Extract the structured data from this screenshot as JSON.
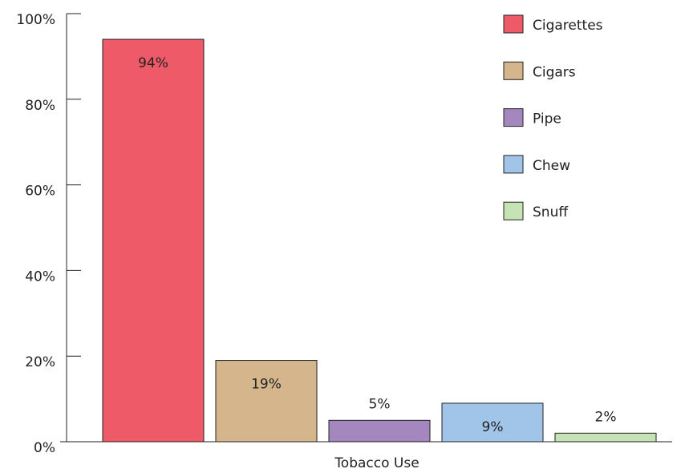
{
  "chart_data": {
    "type": "bar",
    "x_label": "Tobacco Use",
    "series": [
      {
        "name": "Cigarettes",
        "color": "#ef5a68",
        "values": [
          94
        ],
        "value_labels": [
          "94%"
        ]
      },
      {
        "name": "Cigars",
        "color": "#d5b68c",
        "values": [
          19
        ],
        "value_labels": [
          "19%"
        ]
      },
      {
        "name": "Pipe",
        "color": "#a487be",
        "values": [
          5
        ],
        "value_labels": [
          "5%"
        ]
      },
      {
        "name": "Chew",
        "color": "#a1c4e9",
        "values": [
          9
        ],
        "value_labels": [
          "9%"
        ]
      },
      {
        "name": "Snuff",
        "color": "#c6e3b6",
        "values": [
          2
        ],
        "value_labels": [
          "2%"
        ]
      }
    ],
    "ylim": [
      0,
      100
    ],
    "yticks": [
      {
        "value": 0,
        "label": "0%"
      },
      {
        "value": 20,
        "label": "20%"
      },
      {
        "value": 40,
        "label": "40%"
      },
      {
        "value": 60,
        "label": "60%"
      },
      {
        "value": 80,
        "label": "80%"
      },
      {
        "value": 100,
        "label": "100%"
      }
    ],
    "legend": "top-right"
  }
}
